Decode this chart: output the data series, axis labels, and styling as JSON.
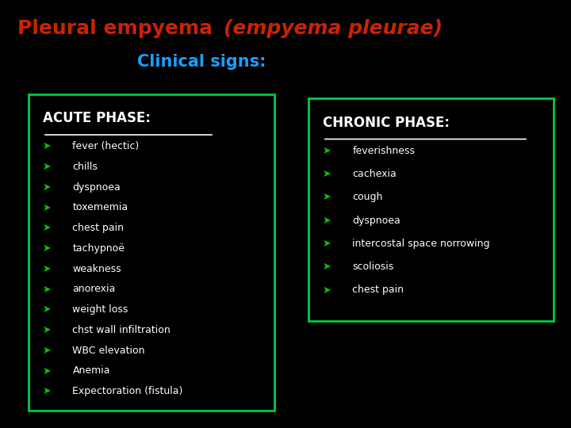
{
  "bg_color": "#000000",
  "title_normal": "Pleural empyema ",
  "title_italic": "(empyema pleurae)",
  "title_color": "#cc2200",
  "subtitle": "Clinical signs:",
  "subtitle_color": "#1a9fff",
  "box_edge_color": "#00cc44",
  "box_bg_color": "#000000",
  "acute_header": "ACUTE PHASE:",
  "acute_header_color": "#ffffff",
  "acute_items": [
    "fever (hectic)",
    "chills",
    "dyspnoea",
    "toxememia",
    "chest pain",
    "tachypnoë",
    "weakness",
    "anorexia",
    "weight loss",
    "chst wall infiltration",
    "WBC elevation",
    "Anemia",
    "Expectoration (fistula)"
  ],
  "chronic_header": "CHRONIC PHASE:",
  "chronic_header_color": "#ffffff",
  "chronic_items": [
    "feverishness",
    "cachexia",
    "cough",
    "dyspnoea",
    "intercostal space norrowing",
    "scoliosis",
    "chest pain"
  ],
  "item_color": "#ffffff",
  "arrow_color": "#00cc00",
  "arrow_char": "➤"
}
